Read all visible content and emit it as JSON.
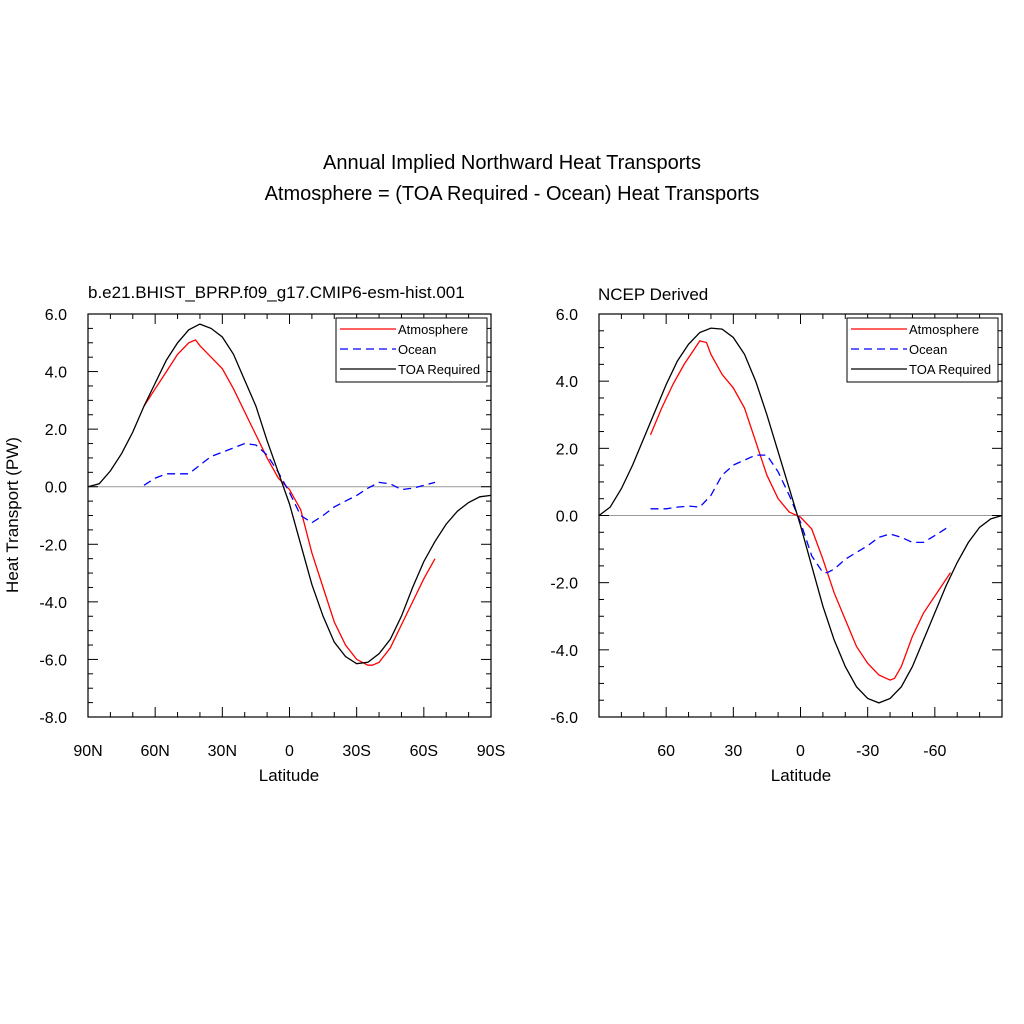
{
  "title_line1": "Annual Implied Northward Heat Transports",
  "title_line2": "Atmosphere = (TOA Required - Ocean) Heat Transports",
  "colors": {
    "atmosphere": "#ff0000",
    "ocean": "#0000ff",
    "toa": "#000000",
    "zero_line": "#999999"
  },
  "chart_data": [
    {
      "type": "line",
      "title": "b.e21.BHIST_BPRP.f09_g17.CMIP6-esm-hist.001",
      "xlabel": "Latitude",
      "ylabel": "Heat Transport (PW)",
      "xlim": [
        90,
        -90
      ],
      "ylim": [
        -8,
        6
      ],
      "x_ticks": [
        90,
        60,
        30,
        0,
        -30,
        -60,
        -90
      ],
      "x_tick_labels": [
        "90N",
        "60N",
        "30N",
        "0",
        "30S",
        "60S",
        "90S"
      ],
      "y_ticks": [
        6,
        4,
        2,
        0,
        -2,
        -4,
        -6,
        -8
      ],
      "y_tick_labels": [
        "6.0",
        "4.0",
        "2.0",
        "0.0",
        "-2.0",
        "-4.0",
        "-6.0",
        "-8.0"
      ],
      "legend_position": "top-right",
      "series": [
        {
          "name": "Atmosphere",
          "x": [
            65,
            60,
            55,
            50,
            45,
            42,
            40,
            35,
            30,
            25,
            20,
            15,
            10,
            5,
            0,
            -5,
            -10,
            -15,
            -20,
            -25,
            -30,
            -35,
            -37,
            -40,
            -45,
            -50,
            -55,
            -60,
            -65
          ],
          "y": [
            2.8,
            3.4,
            4.0,
            4.6,
            5.0,
            5.1,
            4.9,
            4.5,
            4.1,
            3.4,
            2.6,
            1.8,
            1.0,
            0.3,
            -0.1,
            -0.8,
            -2.3,
            -3.5,
            -4.7,
            -5.5,
            -6.0,
            -6.2,
            -6.2,
            -6.1,
            -5.6,
            -4.8,
            -4.0,
            -3.2,
            -2.5
          ]
        },
        {
          "name": "Ocean",
          "x": [
            65,
            60,
            55,
            50,
            45,
            40,
            35,
            30,
            25,
            20,
            15,
            10,
            5,
            0,
            -5,
            -10,
            -15,
            -20,
            -25,
            -30,
            -35,
            -40,
            -45,
            -50,
            -55,
            -60,
            -65
          ],
          "y": [
            0.05,
            0.3,
            0.45,
            0.45,
            0.45,
            0.75,
            1.05,
            1.2,
            1.35,
            1.5,
            1.45,
            1.1,
            0.5,
            -0.2,
            -1.0,
            -1.25,
            -1.0,
            -0.7,
            -0.5,
            -0.3,
            -0.05,
            0.15,
            0.1,
            -0.1,
            -0.05,
            0.05,
            0.15
          ]
        },
        {
          "name": "TOA Required",
          "x": [
            90,
            85,
            80,
            75,
            70,
            65,
            60,
            55,
            50,
            45,
            40,
            35,
            30,
            25,
            20,
            15,
            10,
            5,
            0,
            -5,
            -10,
            -15,
            -20,
            -25,
            -30,
            -35,
            -40,
            -45,
            -50,
            -55,
            -60,
            -65,
            -70,
            -75,
            -80,
            -85,
            -90
          ],
          "y": [
            0.0,
            0.1,
            0.55,
            1.15,
            1.9,
            2.8,
            3.6,
            4.4,
            5.0,
            5.45,
            5.65,
            5.5,
            5.2,
            4.6,
            3.7,
            2.8,
            1.6,
            0.5,
            -0.6,
            -2.0,
            -3.4,
            -4.5,
            -5.4,
            -5.9,
            -6.15,
            -6.1,
            -5.8,
            -5.3,
            -4.5,
            -3.5,
            -2.6,
            -1.9,
            -1.3,
            -0.85,
            -0.55,
            -0.35,
            -0.3
          ]
        }
      ]
    },
    {
      "type": "line",
      "title": "NCEP Derived",
      "xlabel": "Latitude",
      "xlim": [
        90,
        -90
      ],
      "ylim": [
        -6,
        6
      ],
      "x_ticks": [
        60,
        30,
        0,
        -30,
        -60
      ],
      "x_tick_labels": [
        "60",
        "30",
        "0",
        "-30",
        "-60"
      ],
      "y_ticks": [
        6,
        4,
        2,
        0,
        -2,
        -4,
        -6
      ],
      "y_tick_labels": [
        "6.0",
        "4.0",
        "2.0",
        "0.0",
        "-2.0",
        "-4.0",
        "-6.0"
      ],
      "legend_position": "top-right",
      "series": [
        {
          "name": "Atmosphere",
          "x": [
            67,
            62,
            57,
            52,
            47,
            45,
            42,
            40,
            35,
            30,
            25,
            20,
            15,
            10,
            5,
            0,
            -5,
            -10,
            -15,
            -20,
            -25,
            -30,
            -35,
            -40,
            -42,
            -45,
            -50,
            -55,
            -60,
            -67
          ],
          "y": [
            2.4,
            3.2,
            3.9,
            4.5,
            5.0,
            5.2,
            5.15,
            4.8,
            4.2,
            3.8,
            3.2,
            2.2,
            1.2,
            0.5,
            0.1,
            -0.05,
            -0.4,
            -1.3,
            -2.3,
            -3.1,
            -3.9,
            -4.4,
            -4.75,
            -4.9,
            -4.85,
            -4.5,
            -3.6,
            -2.9,
            -2.4,
            -1.7
          ]
        },
        {
          "name": "Ocean",
          "x": [
            67,
            60,
            55,
            50,
            45,
            40,
            35,
            30,
            25,
            20,
            15,
            10,
            5,
            0,
            -5,
            -10,
            -12,
            -15,
            -20,
            -25,
            -30,
            -35,
            -40,
            -45,
            -50,
            -55,
            -60,
            -67
          ],
          "y": [
            0.2,
            0.2,
            0.25,
            0.28,
            0.25,
            0.6,
            1.2,
            1.5,
            1.65,
            1.8,
            1.8,
            1.3,
            0.6,
            -0.2,
            -1.2,
            -1.7,
            -1.7,
            -1.6,
            -1.3,
            -1.1,
            -0.9,
            -0.65,
            -0.55,
            -0.65,
            -0.8,
            -0.8,
            -0.6,
            -0.3
          ]
        },
        {
          "name": "TOA Required",
          "x": [
            90,
            85,
            80,
            75,
            70,
            65,
            60,
            55,
            50,
            45,
            40,
            35,
            30,
            25,
            20,
            15,
            10,
            5,
            0,
            -5,
            -10,
            -15,
            -20,
            -25,
            -30,
            -35,
            -40,
            -45,
            -50,
            -55,
            -60,
            -65,
            -70,
            -75,
            -80,
            -85,
            -90
          ],
          "y": [
            0.0,
            0.25,
            0.8,
            1.5,
            2.3,
            3.1,
            3.9,
            4.6,
            5.1,
            5.45,
            5.58,
            5.55,
            5.3,
            4.8,
            4.0,
            3.0,
            1.9,
            0.8,
            -0.3,
            -1.5,
            -2.7,
            -3.7,
            -4.5,
            -5.1,
            -5.45,
            -5.58,
            -5.45,
            -5.1,
            -4.5,
            -3.7,
            -2.9,
            -2.1,
            -1.4,
            -0.8,
            -0.35,
            -0.1,
            0.0
          ]
        }
      ]
    }
  ]
}
